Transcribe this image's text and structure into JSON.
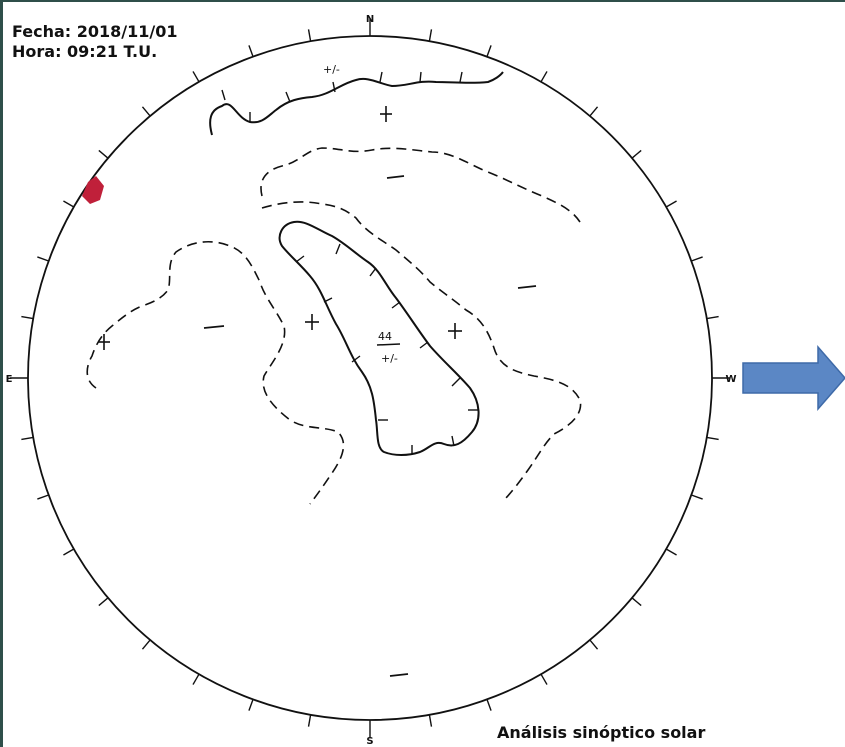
{
  "header": {
    "date_line": "Fecha: 2018/11/01",
    "time_line": "Hora: 09:21 T.U."
  },
  "cardinals": {
    "north": "N",
    "south": "S",
    "east": "E",
    "west": "W"
  },
  "labels": {
    "polarity_top": "+/-",
    "center_number": "44",
    "center_polarity": "+/-"
  },
  "footer": {
    "title": "Análisis sinóptico solar"
  },
  "colors": {
    "arrow": "#5b87c5",
    "arrow_stroke": "#3e6aa8",
    "marker": "#c0203a",
    "lines": "#111111"
  },
  "icons": {
    "next": "arrow-right-icon"
  }
}
